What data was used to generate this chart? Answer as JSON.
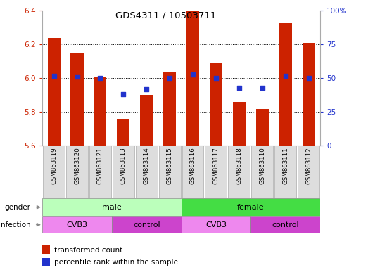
{
  "title": "GDS4311 / 10503711",
  "samples": [
    "GSM863119",
    "GSM863120",
    "GSM863121",
    "GSM863113",
    "GSM863114",
    "GSM863115",
    "GSM863116",
    "GSM863117",
    "GSM863118",
    "GSM863110",
    "GSM863111",
    "GSM863112"
  ],
  "transformed_count": [
    6.24,
    6.15,
    6.01,
    5.76,
    5.9,
    6.04,
    6.4,
    6.09,
    5.86,
    5.82,
    6.33,
    6.21
  ],
  "percentile_rank": [
    52,
    51,
    50,
    38,
    42,
    50,
    53,
    50,
    43,
    43,
    52,
    50
  ],
  "ylim_left": [
    5.6,
    6.4
  ],
  "ylim_right": [
    0,
    100
  ],
  "yticks_left": [
    5.6,
    5.8,
    6.0,
    6.2,
    6.4
  ],
  "yticks_right": [
    0,
    25,
    50,
    75,
    100
  ],
  "bar_color": "#cc2200",
  "dot_color": "#2233cc",
  "gender_groups": [
    {
      "label": "male",
      "start": 0,
      "end": 6,
      "color": "#bbffbb"
    },
    {
      "label": "female",
      "start": 6,
      "end": 12,
      "color": "#44dd44"
    }
  ],
  "infection_groups": [
    {
      "label": "CVB3",
      "start": 0,
      "end": 3,
      "color": "#ee88ee"
    },
    {
      "label": "control",
      "start": 3,
      "end": 6,
      "color": "#cc44cc"
    },
    {
      "label": "CVB3",
      "start": 6,
      "end": 9,
      "color": "#ee88ee"
    },
    {
      "label": "control",
      "start": 9,
      "end": 12,
      "color": "#cc44cc"
    }
  ],
  "legend_items": [
    {
      "label": "transformed count",
      "color": "#cc2200"
    },
    {
      "label": "percentile rank within the sample",
      "color": "#2233cc"
    }
  ],
  "grid_color": "black",
  "grid_linestyle": ":",
  "grid_linewidth": 0.7
}
